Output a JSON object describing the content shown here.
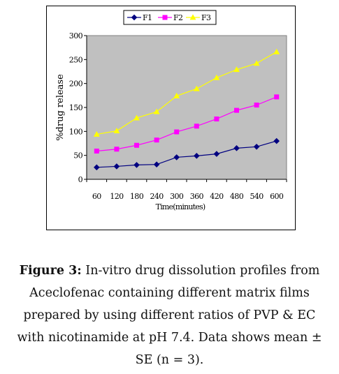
{
  "chart_data": {
    "type": "line",
    "title": "",
    "xlabel": "Time(minutes)",
    "ylabel": "%drug release",
    "x": [
      60,
      120,
      180,
      240,
      300,
      360,
      420,
      480,
      540,
      600
    ],
    "ylim": [
      0,
      300
    ],
    "yticks": [
      0,
      50,
      100,
      150,
      200,
      250,
      300
    ],
    "grid": false,
    "legend_position": "top",
    "plot_background": "#c0c0c0",
    "series": [
      {
        "name": "F1",
        "color": "#000080",
        "marker": "diamond",
        "values": [
          25,
          27,
          30,
          31,
          46,
          49,
          53,
          65,
          68,
          80
        ]
      },
      {
        "name": "F2",
        "color": "#ff00ff",
        "marker": "square",
        "values": [
          59,
          63,
          71,
          82,
          99,
          111,
          126,
          144,
          155,
          172
        ]
      },
      {
        "name": "F3",
        "color": "#ffff00",
        "marker": "triangle",
        "values": [
          94,
          101,
          128,
          141,
          174,
          189,
          212,
          229,
          242,
          266
        ]
      }
    ]
  },
  "caption": {
    "label": "Figure 3:",
    "text": " In-vitro drug dissolution profiles from Aceclofenac containing different matrix films prepared by using different ratios of PVP & EC with nicotinamide at pH 7.4. Data shows mean ± SE (n = 3)."
  }
}
